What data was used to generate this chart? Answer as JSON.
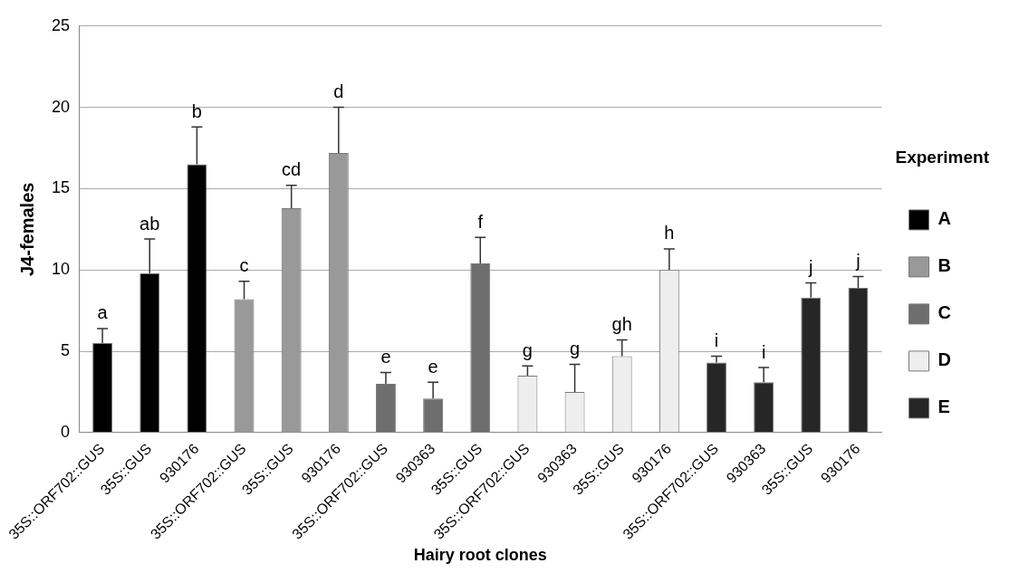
{
  "chart_data": {
    "type": "bar",
    "xlabel": "Hairy root clones",
    "ylabel": "J4-females",
    "legend_title": "Experiment",
    "legend": "right",
    "grid": "y",
    "categories": [
      "35S::ORF702::GUS",
      "35S::GUS",
      "930176",
      "35S::ORF702::GUS",
      "35S::GUS",
      "930176",
      "35S::ORF702::GUS",
      "930363",
      "35S::GUS",
      "35S::ORF702::GUS",
      "930363",
      "35S::GUS",
      "930176",
      "35S::ORF702::GUS",
      "930363",
      "35S::GUS",
      "930176"
    ],
    "ylim": [
      0,
      25
    ],
    "yticks": [
      0,
      5,
      10,
      15,
      20,
      25
    ],
    "series": [
      {
        "name": "A",
        "color": "#000000",
        "values": [
          5.5,
          9.8,
          16.5,
          null,
          null,
          null,
          null,
          null,
          null,
          null,
          null,
          null,
          null,
          null,
          null,
          null,
          null
        ],
        "errors": [
          [
            5.5,
            6.4
          ],
          [
            9.8,
            11.9
          ],
          [
            16.5,
            18.8
          ],
          null,
          null,
          null,
          null,
          null,
          null,
          null,
          null,
          null,
          null,
          null,
          null,
          null,
          null
        ],
        "value_labels": [
          "a",
          "ab",
          "b",
          null,
          null,
          null,
          null,
          null,
          null,
          null,
          null,
          null,
          null,
          null,
          null,
          null,
          null
        ]
      },
      {
        "name": "B",
        "color": "#999999",
        "values": [
          null,
          null,
          null,
          8.2,
          13.8,
          17.2,
          null,
          null,
          null,
          null,
          null,
          null,
          null,
          null,
          null,
          null,
          null
        ],
        "errors": [
          null,
          null,
          null,
          [
            8.2,
            9.3
          ],
          [
            13.8,
            15.2
          ],
          [
            17.2,
            20.0
          ],
          null,
          null,
          null,
          null,
          null,
          null,
          null,
          null,
          null,
          null,
          null
        ],
        "value_labels": [
          null,
          null,
          null,
          "c",
          "cd",
          "d",
          null,
          null,
          null,
          null,
          null,
          null,
          null,
          null,
          null,
          null,
          null
        ]
      },
      {
        "name": "C",
        "color": "#6e6e6e",
        "values": [
          null,
          null,
          null,
          null,
          null,
          null,
          3.0,
          2.1,
          10.4,
          null,
          null,
          null,
          null,
          null,
          null,
          null,
          null
        ],
        "errors": [
          null,
          null,
          null,
          null,
          null,
          null,
          [
            3.0,
            3.7
          ],
          [
            2.1,
            3.1
          ],
          [
            10.4,
            12.0
          ],
          null,
          null,
          null,
          null,
          null,
          null,
          null,
          null
        ],
        "value_labels": [
          null,
          null,
          null,
          null,
          null,
          null,
          "e",
          "e",
          "f",
          null,
          null,
          null,
          null,
          null,
          null,
          null,
          null
        ]
      },
      {
        "name": "D",
        "color": "#eeeeee",
        "values": [
          null,
          null,
          null,
          null,
          null,
          null,
          null,
          null,
          null,
          3.5,
          2.5,
          4.7,
          10.0,
          null,
          null,
          null,
          null
        ],
        "errors": [
          null,
          null,
          null,
          null,
          null,
          null,
          null,
          null,
          null,
          [
            3.5,
            4.1
          ],
          [
            2.5,
            4.2
          ],
          [
            4.7,
            5.7
          ],
          [
            10.0,
            11.3
          ],
          null,
          null,
          null,
          null
        ],
        "value_labels": [
          null,
          null,
          null,
          null,
          null,
          null,
          null,
          null,
          null,
          "g",
          "g",
          "gh",
          "h",
          null,
          null,
          null,
          null
        ]
      },
      {
        "name": "E",
        "color": "#262626",
        "values": [
          null,
          null,
          null,
          null,
          null,
          null,
          null,
          null,
          null,
          null,
          null,
          null,
          null,
          4.3,
          3.1,
          8.3,
          8.9
        ],
        "errors": [
          null,
          null,
          null,
          null,
          null,
          null,
          null,
          null,
          null,
          null,
          null,
          null,
          null,
          [
            4.3,
            4.7
          ],
          [
            3.1,
            4.0
          ],
          [
            8.3,
            9.2
          ],
          [
            8.9,
            9.6
          ]
        ],
        "value_labels": [
          null,
          null,
          null,
          null,
          null,
          null,
          null,
          null,
          null,
          null,
          null,
          null,
          null,
          "i",
          "i",
          "j",
          "j"
        ]
      }
    ]
  }
}
